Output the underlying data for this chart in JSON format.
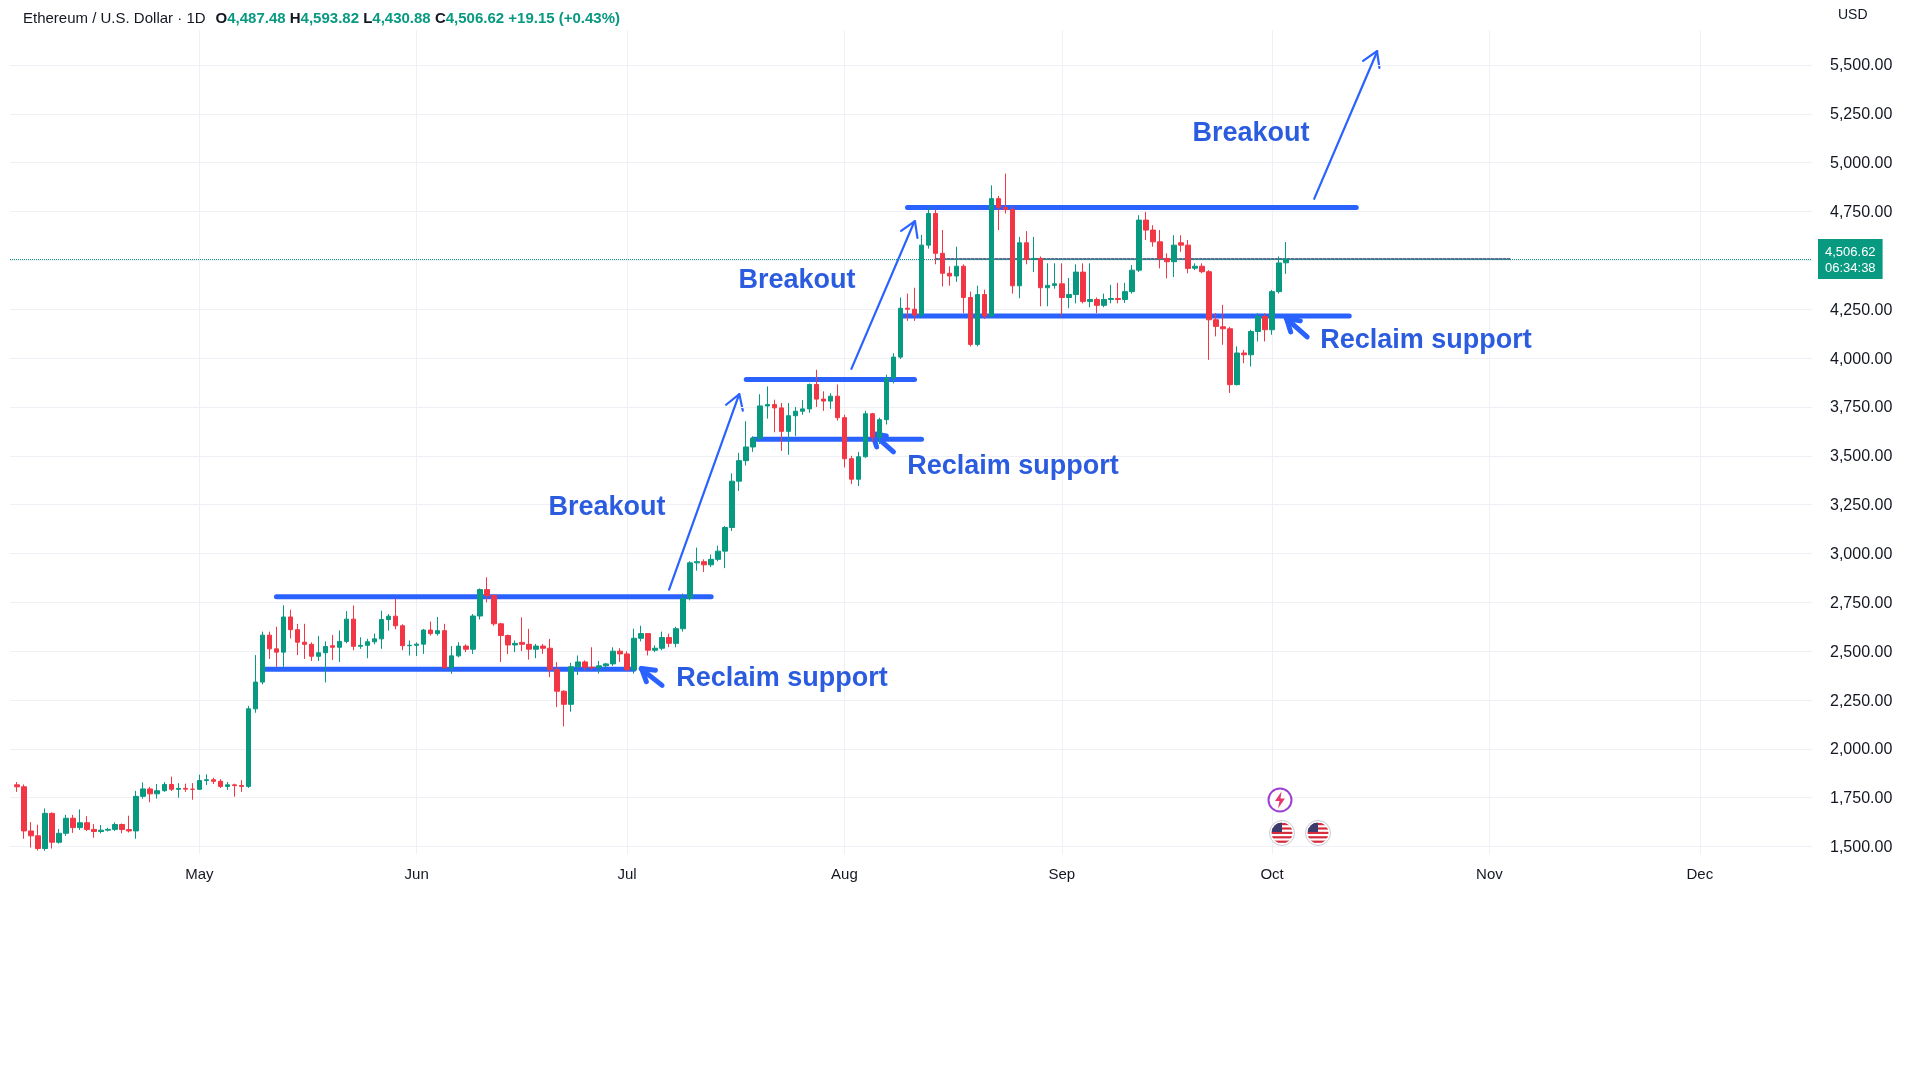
{
  "chart_data": {
    "type": "candlestick",
    "title": "Ethereum / U.S. Dollar · 1D",
    "subtitle": "O4,487.48 H4,593.82 L4,430.88 C4,506.62 +19.15 (+0.43%)",
    "ylabel": "USD",
    "x": [
      "--04-05",
      "--04-06",
      "--04-07",
      "--04-08",
      "--04-09",
      "--04-10",
      "--04-11",
      "--04-12",
      "--04-13",
      "--04-14",
      "--04-15",
      "--04-16",
      "--04-17",
      "--04-18",
      "--04-19",
      "--04-20",
      "--04-21",
      "--04-22",
      "--04-23",
      "--04-24",
      "--04-25",
      "--04-26",
      "--04-27",
      "--04-28",
      "--04-29",
      "--04-30",
      "--05-01",
      "--05-02",
      "--05-03",
      "--05-04",
      "--05-05",
      "--05-06",
      "--05-07",
      "--05-08",
      "--05-09",
      "--05-10",
      "--05-11",
      "--05-12",
      "--05-13",
      "--05-14",
      "--05-15",
      "--05-16",
      "--05-17",
      "--05-18",
      "--05-19",
      "--05-20",
      "--05-21",
      "--05-22",
      "--05-23",
      "--05-24",
      "--05-25",
      "--05-26",
      "--05-27",
      "--05-28",
      "--05-29",
      "--05-30",
      "--05-31",
      "--06-01",
      "--06-02",
      "--06-03",
      "--06-04",
      "--06-05",
      "--06-06",
      "--06-07",
      "--06-08",
      "--06-09",
      "--06-10",
      "--06-11",
      "--06-12",
      "--06-13",
      "--06-14",
      "--06-15",
      "--06-16",
      "--06-17",
      "--06-18",
      "--06-19",
      "--06-20",
      "--06-21",
      "--06-22",
      "--06-23",
      "--06-24",
      "--06-25",
      "--06-26",
      "--06-27",
      "--06-28",
      "--06-29",
      "--06-30",
      "--07-01",
      "--07-02",
      "--07-03",
      "--07-04",
      "--07-05",
      "--07-06",
      "--07-07",
      "--07-08",
      "--07-09",
      "--07-10",
      "--07-11",
      "--07-12",
      "--07-13",
      "--07-14",
      "--07-15",
      "--07-16",
      "--07-17",
      "--07-18",
      "--07-19",
      "--07-20",
      "--07-21",
      "--07-22",
      "--07-23",
      "--07-24",
      "--07-25",
      "--07-26",
      "--07-27",
      "--07-28",
      "--07-29",
      "--07-30",
      "--07-31",
      "--08-01",
      "--08-02",
      "--08-03",
      "--08-04",
      "--08-05",
      "--08-06",
      "--08-07",
      "--08-08",
      "--08-09",
      "--08-10",
      "--08-11",
      "--08-12",
      "--08-13",
      "--08-14",
      "--08-15",
      "--08-16",
      "--08-17",
      "--08-18",
      "--08-19",
      "--08-20",
      "--08-21",
      "--08-22",
      "--08-23",
      "--08-24",
      "--08-25",
      "--08-26",
      "--08-27",
      "--08-28",
      "--08-29",
      "--08-30",
      "--08-31",
      "--09-01",
      "--09-02",
      "--09-03",
      "--09-04",
      "--09-05",
      "--09-06",
      "--09-07",
      "--09-08",
      "--09-09",
      "--09-10",
      "--09-11",
      "--09-12",
      "--09-13",
      "--09-14",
      "--09-15",
      "--09-16",
      "--09-17",
      "--09-18",
      "--09-19",
      "--09-20",
      "--09-21",
      "--09-22",
      "--09-23",
      "--09-24",
      "--09-25",
      "--09-26",
      "--09-27",
      "--09-28",
      "--09-29",
      "--09-30",
      "--10-01",
      "--10-02",
      "--10-03"
    ],
    "ohlc": [
      [
        1816,
        1830,
        1780,
        1806
      ],
      [
        1806,
        1818,
        1540,
        1580
      ],
      [
        1580,
        1625,
        1495,
        1555
      ],
      [
        1555,
        1612,
        1480,
        1490
      ],
      [
        1490,
        1695,
        1478,
        1670
      ],
      [
        1670,
        1675,
        1490,
        1522
      ],
      [
        1522,
        1590,
        1515,
        1568
      ],
      [
        1568,
        1662,
        1555,
        1645
      ],
      [
        1645,
        1662,
        1570,
        1597
      ],
      [
        1597,
        1690,
        1585,
        1622
      ],
      [
        1622,
        1656,
        1580,
        1588
      ],
      [
        1588,
        1615,
        1545,
        1577
      ],
      [
        1577,
        1610,
        1568,
        1584
      ],
      [
        1584,
        1596,
        1577,
        1588
      ],
      [
        1588,
        1624,
        1580,
        1613
      ],
      [
        1613,
        1618,
        1568,
        1587
      ],
      [
        1587,
        1658,
        1572,
        1580
      ],
      [
        1580,
        1785,
        1540,
        1757
      ],
      [
        1757,
        1829,
        1745,
        1795
      ],
      [
        1795,
        1805,
        1727,
        1770
      ],
      [
        1770,
        1820,
        1745,
        1786
      ],
      [
        1786,
        1830,
        1780,
        1818
      ],
      [
        1818,
        1858,
        1785,
        1793
      ],
      [
        1793,
        1825,
        1750,
        1798
      ],
      [
        1798,
        1822,
        1780,
        1794
      ],
      [
        1794,
        1825,
        1740,
        1793
      ],
      [
        1793,
        1868,
        1790,
        1838
      ],
      [
        1838,
        1870,
        1815,
        1842
      ],
      [
        1842,
        1852,
        1820,
        1834
      ],
      [
        1834,
        1845,
        1800,
        1808
      ],
      [
        1808,
        1830,
        1790,
        1816
      ],
      [
        1816,
        1822,
        1755,
        1812
      ],
      [
        1812,
        1840,
        1780,
        1808
      ],
      [
        1808,
        2220,
        1800,
        2205
      ],
      [
        2205,
        2480,
        2185,
        2342
      ],
      [
        2342,
        2600,
        2330,
        2582
      ],
      [
        2582,
        2600,
        2460,
        2512
      ],
      [
        2512,
        2625,
        2420,
        2495
      ],
      [
        2495,
        2735,
        2420,
        2675
      ],
      [
        2675,
        2712,
        2565,
        2610
      ],
      [
        2610,
        2640,
        2480,
        2546
      ],
      [
        2546,
        2640,
        2460,
        2535
      ],
      [
        2535,
        2545,
        2450,
        2474
      ],
      [
        2474,
        2578,
        2450,
        2492
      ],
      [
        2492,
        2550,
        2340,
        2524
      ],
      [
        2528,
        2583,
        2455,
        2520
      ],
      [
        2520,
        2606,
        2445,
        2550
      ],
      [
        2550,
        2705,
        2540,
        2664
      ],
      [
        2664,
        2734,
        2505,
        2525
      ],
      [
        2525,
        2571,
        2512,
        2530
      ],
      [
        2530,
        2563,
        2464,
        2548
      ],
      [
        2548,
        2590,
        2535,
        2563
      ],
      [
        2563,
        2707,
        2512,
        2662
      ],
      [
        2662,
        2690,
        2605,
        2679
      ],
      [
        2679,
        2768,
        2612,
        2630
      ],
      [
        2630,
        2638,
        2505,
        2528
      ],
      [
        2528,
        2555,
        2478,
        2530
      ],
      [
        2530,
        2545,
        2475,
        2536
      ],
      [
        2536,
        2614,
        2486,
        2608
      ],
      [
        2608,
        2651,
        2580,
        2590
      ],
      [
        2590,
        2675,
        2580,
        2605
      ],
      [
        2605,
        2640,
        2410,
        2415
      ],
      [
        2415,
        2526,
        2384,
        2476
      ],
      [
        2476,
        2546,
        2469,
        2526
      ],
      [
        2526,
        2535,
        2495,
        2510
      ],
      [
        2510,
        2690,
        2486,
        2680
      ],
      [
        2680,
        2821,
        2662,
        2815
      ],
      [
        2815,
        2878,
        2750,
        2785
      ],
      [
        2785,
        2790,
        2630,
        2640
      ],
      [
        2640,
        2645,
        2445,
        2580
      ],
      [
        2580,
        2585,
        2485,
        2532
      ],
      [
        2532,
        2555,
        2495,
        2540
      ],
      [
        2545,
        2673,
        2500,
        2535
      ],
      [
        2535,
        2614,
        2457,
        2510
      ],
      [
        2510,
        2537,
        2464,
        2526
      ],
      [
        2526,
        2537,
        2486,
        2515
      ],
      [
        2515,
        2563,
        2367,
        2405
      ],
      [
        2405,
        2444,
        2214,
        2295
      ],
      [
        2295,
        2300,
        2115,
        2228
      ],
      [
        2228,
        2440,
        2190,
        2420
      ],
      [
        2420,
        2478,
        2378,
        2445
      ],
      [
        2445,
        2453,
        2400,
        2418
      ],
      [
        2418,
        2520,
        2405,
        2415
      ],
      [
        2415,
        2450,
        2385,
        2425
      ],
      [
        2425,
        2440,
        2410,
        2435
      ],
      [
        2435,
        2520,
        2425,
        2500
      ],
      [
        2500,
        2515,
        2445,
        2486
      ],
      [
        2486,
        2500,
        2398,
        2405
      ],
      [
        2405,
        2615,
        2385,
        2566
      ],
      [
        2566,
        2630,
        2550,
        2590
      ],
      [
        2590,
        2592,
        2478,
        2505
      ],
      [
        2505,
        2530,
        2495,
        2515
      ],
      [
        2515,
        2600,
        2505,
        2570
      ],
      [
        2570,
        2590,
        2520,
        2540
      ],
      [
        2540,
        2625,
        2520,
        2615
      ],
      [
        2615,
        2795,
        2600,
        2770
      ],
      [
        2770,
        2960,
        2760,
        2952
      ],
      [
        2952,
        3030,
        2912,
        2958
      ],
      [
        2958,
        2970,
        2905,
        2942
      ],
      [
        2942,
        2995,
        2930,
        2970
      ],
      [
        2970,
        3040,
        2960,
        3012
      ],
      [
        3012,
        3140,
        2925,
        3133
      ],
      [
        3133,
        3410,
        3115,
        3370
      ],
      [
        3370,
        3515,
        3320,
        3475
      ],
      [
        3475,
        3677,
        3450,
        3545
      ],
      [
        3545,
        3600,
        3520,
        3590
      ],
      [
        3590,
        3815,
        3580,
        3755
      ],
      [
        3755,
        3855,
        3690,
        3762
      ],
      [
        3762,
        3787,
        3620,
        3745
      ],
      [
        3745,
        3770,
        3525,
        3625
      ],
      [
        3625,
        3770,
        3505,
        3705
      ],
      [
        3705,
        3750,
        3600,
        3728
      ],
      [
        3728,
        3785,
        3710,
        3740
      ],
      [
        3740,
        3870,
        3720,
        3865
      ],
      [
        3865,
        3940,
        3750,
        3790
      ],
      [
        3790,
        3830,
        3730,
        3780
      ],
      [
        3780,
        3820,
        3740,
        3805
      ],
      [
        3805,
        3865,
        3680,
        3695
      ],
      [
        3695,
        3710,
        3440,
        3485
      ],
      [
        3485,
        3500,
        3355,
        3380
      ],
      [
        3380,
        3520,
        3345,
        3495
      ],
      [
        3495,
        3730,
        3490,
        3715
      ],
      [
        3715,
        3720,
        3570,
        3595
      ],
      [
        3595,
        3695,
        3560,
        3685
      ],
      [
        3685,
        3915,
        3660,
        3898
      ],
      [
        3898,
        4025,
        3870,
        4005
      ],
      [
        4005,
        4310,
        3995,
        4255
      ],
      [
        4255,
        4330,
        4190,
        4250
      ],
      [
        4250,
        4360,
        4190,
        4220
      ],
      [
        4220,
        4630,
        4205,
        4578
      ],
      [
        4578,
        4775,
        4560,
        4740
      ],
      [
        4740,
        4760,
        4480,
        4536
      ],
      [
        4536,
        4655,
        4366,
        4434
      ],
      [
        4434,
        4470,
        4370,
        4420
      ],
      [
        4420,
        4570,
        4390,
        4470
      ],
      [
        4470,
        4480,
        4230,
        4310
      ],
      [
        4310,
        4340,
        4060,
        4070
      ],
      [
        4070,
        4370,
        4060,
        4325
      ],
      [
        4325,
        4350,
        4200,
        4215
      ],
      [
        4215,
        4884,
        4205,
        4816
      ],
      [
        4816,
        4830,
        4655,
        4770
      ],
      [
        4770,
        4944,
        4740,
        4760
      ],
      [
        4760,
        4775,
        4330,
        4370
      ],
      [
        4370,
        4620,
        4306,
        4590
      ],
      [
        4590,
        4650,
        4480,
        4505
      ],
      [
        4505,
        4620,
        4440,
        4510
      ],
      [
        4510,
        4520,
        4265,
        4360
      ],
      [
        4360,
        4485,
        4265,
        4372
      ],
      [
        4372,
        4485,
        4355,
        4380
      ],
      [
        4380,
        4485,
        4213,
        4310
      ],
      [
        4310,
        4410,
        4255,
        4325
      ],
      [
        4325,
        4480,
        4280,
        4440
      ],
      [
        4440,
        4485,
        4280,
        4290
      ],
      [
        4290,
        4485,
        4260,
        4300
      ],
      [
        4300,
        4310,
        4230,
        4270
      ],
      [
        4270,
        4330,
        4260,
        4300
      ],
      [
        4300,
        4375,
        4280,
        4305
      ],
      [
        4305,
        4385,
        4280,
        4300
      ],
      [
        4300,
        4385,
        4282,
        4340
      ],
      [
        4340,
        4476,
        4330,
        4450
      ],
      [
        4450,
        4731,
        4440,
        4706
      ],
      [
        4706,
        4748,
        4604,
        4655
      ],
      [
        4655,
        4680,
        4570,
        4595
      ],
      [
        4595,
        4655,
        4459,
        4510
      ],
      [
        4510,
        4536,
        4408,
        4493
      ],
      [
        4493,
        4629,
        4415,
        4578
      ],
      [
        4590,
        4629,
        4544,
        4578
      ],
      [
        4578,
        4604,
        4434,
        4459
      ],
      [
        4460,
        4485,
        4450,
        4470
      ],
      [
        4470,
        4485,
        4434,
        4442
      ],
      [
        4442,
        4450,
        3991,
        4196
      ],
      [
        4196,
        4230,
        4111,
        4162
      ],
      [
        4160,
        4272,
        4068,
        4150
      ],
      [
        4150,
        4160,
        3821,
        3864
      ],
      [
        3864,
        4060,
        3860,
        4026
      ],
      [
        4026,
        4042,
        3974,
        4017
      ],
      [
        4017,
        4145,
        3957,
        4136
      ],
      [
        4136,
        4230,
        4085,
        4213
      ],
      [
        4213,
        4230,
        4085,
        4145
      ],
      [
        4145,
        4349,
        4119,
        4340
      ],
      [
        4340,
        4520,
        4330,
        4487
      ],
      [
        4487.48,
        4593.82,
        4430.88,
        4506.62
      ]
    ],
    "series": [
      {
        "type": "line",
        "color": "#2962ff",
        "x": [
          "--05-12",
          "--07-13"
        ],
        "values": [
          2778,
          2778
        ]
      },
      {
        "type": "line",
        "color": "#2962ff",
        "x": [
          "--05-10",
          "--07-02"
        ],
        "values": [
          2408,
          2408
        ]
      },
      {
        "type": "line",
        "color": "#2962ff",
        "x": [
          "--07-18",
          "--08-11"
        ],
        "values": [
          3890,
          3890
        ]
      },
      {
        "type": "line",
        "color": "#2962ff",
        "x": [
          "--07-19",
          "--08-12"
        ],
        "values": [
          3585,
          3585
        ]
      },
      {
        "type": "line",
        "color": "#2962ff",
        "x": [
          "--08-10",
          "--10-13"
        ],
        "values": [
          4770,
          4770
        ]
      },
      {
        "type": "line",
        "color": "#2962ff",
        "x": [
          "--08-09",
          "--10-12"
        ],
        "values": [
          4215,
          4215
        ]
      },
      {
        "type": "line",
        "color": "#2962ff",
        "x": [
          "--07-07",
          "--07-17"
        ],
        "values": [
          2815,
          3815
        ]
      },
      {
        "type": "line",
        "color": "#2962ff",
        "x": [
          "--08-02",
          "--08-11"
        ],
        "values": [
          3945,
          4700
        ]
      },
      {
        "type": "line",
        "color": "#2962ff",
        "x": [
          "--10-07",
          "--10-16"
        ],
        "values": [
          4815,
          5570
        ]
      },
      {
        "type": "line",
        "color": "#2962ff",
        "x": [
          "--07-06",
          "--07-03"
        ],
        "values": [
          2325,
          2410
        ]
      },
      {
        "type": "line",
        "color": "#2962ff",
        "x": [
          "--08-08",
          "--08-05"
        ],
        "values": [
          3520,
          3615
        ]
      },
      {
        "type": "line",
        "color": "#2962ff",
        "x": [
          "--10-06",
          "--10-03"
        ],
        "values": [
          4108,
          4203
        ]
      },
      {
        "type": "line",
        "color": "#5b6a94",
        "line_style": "dotted",
        "x": [
          "--08-14",
          "--11-04"
        ],
        "values": [
          4507,
          4507
        ]
      }
    ],
    "ref_lines": [
      {
        "axis": "y",
        "value": 4506.62,
        "label": "4,506.62\n06:34:38",
        "color": "#089981",
        "line_style": "dotted"
      }
    ],
    "annotations": [
      "Breakout",
      "Reclaim support",
      "Breakout",
      "Reclaim support",
      "Breakout",
      "Reclaim support"
    ],
    "xlim": [
      "--04-04",
      "--12-17"
    ],
    "xticks": [
      {
        "value": "--05-01",
        "label": "May"
      },
      {
        "value": "--06-01",
        "label": "Jun"
      },
      {
        "value": "--07-01",
        "label": "Jul"
      },
      {
        "value": "--08-01",
        "label": "Aug"
      },
      {
        "value": "--09-01",
        "label": "Sep"
      },
      {
        "value": "--10-01",
        "label": "Oct"
      },
      {
        "value": "--11-01",
        "label": "Nov"
      },
      {
        "value": "--12-01",
        "label": "Dec"
      }
    ],
    "ylim": [
      1462,
      5679
    ],
    "yticks": [
      {
        "value": 1500,
        "label": "1,500.00"
      },
      {
        "value": 1750,
        "label": "1,750.00"
      },
      {
        "value": 2000,
        "label": "2,000.00"
      },
      {
        "value": 2250,
        "label": "2,250.00"
      },
      {
        "value": 2500,
        "label": "2,500.00"
      },
      {
        "value": 2750,
        "label": "2,750.00"
      },
      {
        "value": 3000,
        "label": "3,000.00"
      },
      {
        "value": 3250,
        "label": "3,250.00"
      },
      {
        "value": 3500,
        "label": "3,500.00"
      },
      {
        "value": 3750,
        "label": "3,750.00"
      },
      {
        "value": 4000,
        "label": "4,000.00"
      },
      {
        "value": 4250,
        "label": "4,250.00"
      },
      {
        "value": 4500,
        "label": null
      },
      {
        "value": 4750,
        "label": "4,750.00"
      },
      {
        "value": 5000,
        "label": "5,000.00"
      },
      {
        "value": 5250,
        "label": "5,250.00"
      },
      {
        "value": 5500,
        "label": "5,500.00"
      }
    ],
    "grid": true
  }
}
